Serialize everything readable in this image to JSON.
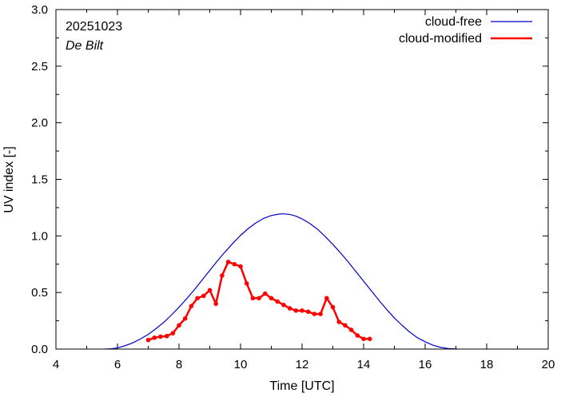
{
  "chart_data": {
    "type": "line",
    "title": "",
    "xlabel": "Time  [UTC]",
    "ylabel": "UV index  [-]",
    "xlim": [
      4,
      20
    ],
    "ylim": [
      0,
      3
    ],
    "xticks": [
      4,
      6,
      8,
      10,
      12,
      14,
      16,
      18,
      20
    ],
    "xtick_labels": [
      "4",
      "6",
      "8",
      "10",
      "12",
      "14",
      "16",
      "18",
      "20"
    ],
    "yticks": [
      0,
      0.5,
      1,
      1.5,
      2,
      2.5,
      3
    ],
    "ytick_labels": [
      "0.0",
      "0.5",
      "1.0",
      "1.5",
      "2.0",
      "2.5",
      "3.0"
    ],
    "annotations": {
      "date": "20251023",
      "station": "De Bilt"
    },
    "legend_position": "top-right",
    "series": [
      {
        "name": "cloud-free",
        "color": "#0000cc",
        "style": "line",
        "points": [
          [
            5.6,
            0.0
          ],
          [
            5.8,
            0.003
          ],
          [
            6.0,
            0.01
          ],
          [
            6.25,
            0.03
          ],
          [
            6.5,
            0.055
          ],
          [
            6.75,
            0.09
          ],
          [
            7.0,
            0.13
          ],
          [
            7.25,
            0.18
          ],
          [
            7.5,
            0.235
          ],
          [
            7.75,
            0.3
          ],
          [
            8.0,
            0.37
          ],
          [
            8.25,
            0.445
          ],
          [
            8.5,
            0.525
          ],
          [
            8.75,
            0.61
          ],
          [
            9.0,
            0.695
          ],
          [
            9.25,
            0.78
          ],
          [
            9.5,
            0.86
          ],
          [
            9.75,
            0.935
          ],
          [
            10.0,
            1.005
          ],
          [
            10.25,
            1.065
          ],
          [
            10.5,
            1.115
          ],
          [
            10.75,
            1.155
          ],
          [
            11.0,
            1.18
          ],
          [
            11.25,
            1.193
          ],
          [
            11.4,
            1.195
          ],
          [
            11.6,
            1.19
          ],
          [
            11.8,
            1.175
          ],
          [
            12.0,
            1.15
          ],
          [
            12.25,
            1.11
          ],
          [
            12.5,
            1.06
          ],
          [
            12.75,
            0.995
          ],
          [
            13.0,
            0.925
          ],
          [
            13.25,
            0.85
          ],
          [
            13.5,
            0.77
          ],
          [
            13.75,
            0.685
          ],
          [
            14.0,
            0.6
          ],
          [
            14.25,
            0.515
          ],
          [
            14.5,
            0.43
          ],
          [
            14.75,
            0.35
          ],
          [
            15.0,
            0.275
          ],
          [
            15.25,
            0.21
          ],
          [
            15.5,
            0.15
          ],
          [
            15.75,
            0.1
          ],
          [
            16.0,
            0.065
          ],
          [
            16.25,
            0.035
          ],
          [
            16.5,
            0.015
          ],
          [
            16.75,
            0.005
          ],
          [
            17.05,
            0.0
          ]
        ]
      },
      {
        "name": "cloud-modified",
        "color": "#ff0000",
        "style": "line-points",
        "points": [
          [
            7.0,
            0.08
          ],
          [
            7.2,
            0.1
          ],
          [
            7.4,
            0.11
          ],
          [
            7.6,
            0.115
          ],
          [
            7.8,
            0.14
          ],
          [
            8.0,
            0.21
          ],
          [
            8.2,
            0.27
          ],
          [
            8.4,
            0.38
          ],
          [
            8.6,
            0.45
          ],
          [
            8.8,
            0.47
          ],
          [
            9.0,
            0.52
          ],
          [
            9.2,
            0.4
          ],
          [
            9.4,
            0.65
          ],
          [
            9.6,
            0.77
          ],
          [
            9.8,
            0.75
          ],
          [
            10.0,
            0.73
          ],
          [
            10.2,
            0.58
          ],
          [
            10.4,
            0.45
          ],
          [
            10.6,
            0.45
          ],
          [
            10.8,
            0.49
          ],
          [
            11.0,
            0.45
          ],
          [
            11.2,
            0.42
          ],
          [
            11.4,
            0.39
          ],
          [
            11.6,
            0.36
          ],
          [
            11.8,
            0.34
          ],
          [
            12.0,
            0.34
          ],
          [
            12.2,
            0.33
          ],
          [
            12.4,
            0.31
          ],
          [
            12.6,
            0.31
          ],
          [
            12.8,
            0.45
          ],
          [
            13.0,
            0.37
          ],
          [
            13.2,
            0.24
          ],
          [
            13.4,
            0.21
          ],
          [
            13.6,
            0.17
          ],
          [
            13.8,
            0.12
          ],
          [
            14.0,
            0.09
          ],
          [
            14.2,
            0.09
          ]
        ]
      }
    ]
  }
}
